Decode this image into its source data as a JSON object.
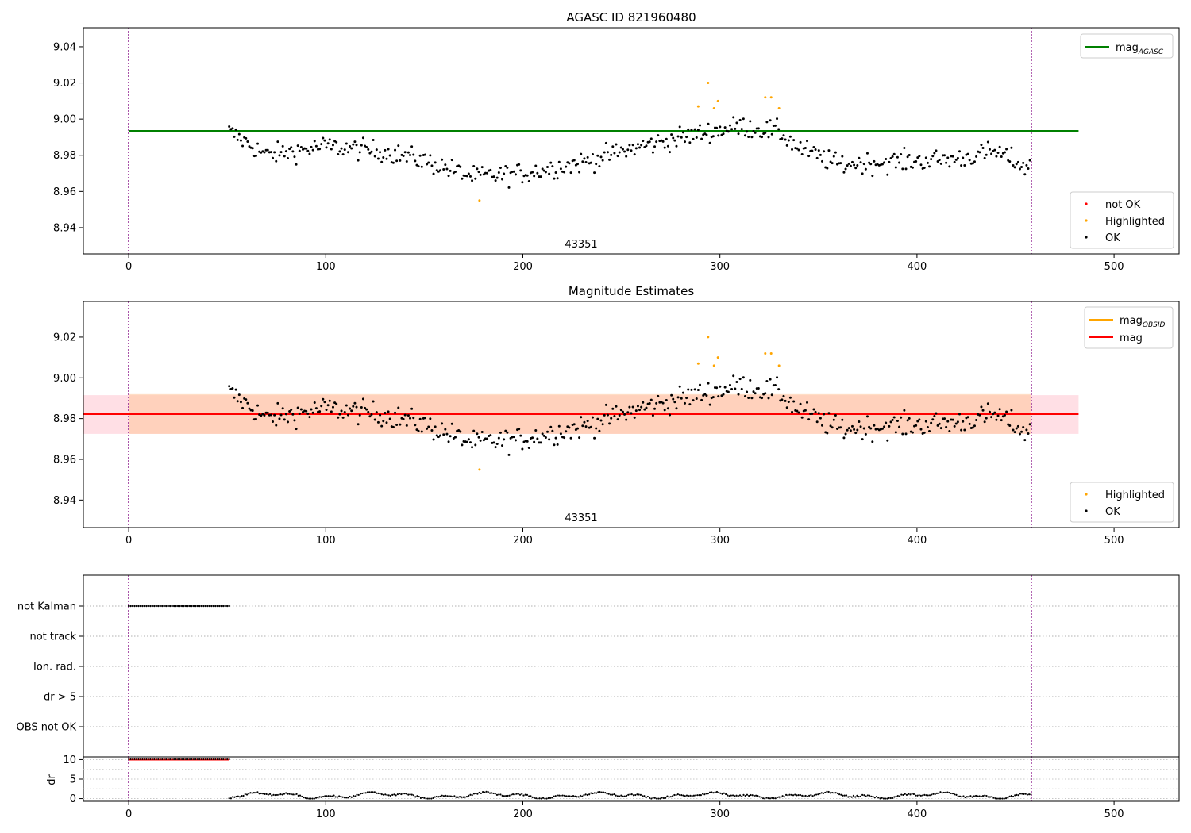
{
  "figure": {
    "colors": {
      "ok": "#000000",
      "highlighted": "#ffa500",
      "not_ok": "#ff0000",
      "mag_agasc": "#008000",
      "mag_obsid": "#ffa500",
      "mag": "#ff0000",
      "vline": "#800080",
      "band_mag": "#ffc0cb",
      "band_obsid": "#ffc8a0"
    }
  },
  "chart_data": [
    {
      "type": "scatter",
      "title": "AGASC ID 821960480",
      "xlim": [
        -23,
        533
      ],
      "ylim": [
        8.9255,
        9.0505
      ],
      "xticks": [
        0,
        100,
        200,
        300,
        400,
        500
      ],
      "yticks": [
        "8.94",
        "8.96",
        "8.98",
        "9.00",
        "9.02",
        "9.04"
      ],
      "obsid_label": "43351",
      "obsid_label_x": 229,
      "obsid_bounds": [
        0,
        458
      ],
      "legend_lines": {
        "position": "upper right",
        "entries": [
          {
            "label": "mag",
            "subscript": "AGASC",
            "color": "#008000"
          }
        ]
      },
      "legend_points": {
        "position": "lower right",
        "entries": [
          {
            "label": "not OK",
            "color": "#ff0000"
          },
          {
            "label": "Highlighted",
            "color": "#ffa500"
          },
          {
            "label": "OK",
            "color": "#000000"
          }
        ]
      },
      "lines": [
        {
          "name": "mag AGASC",
          "y": 8.9935,
          "x": [
            0,
            482
          ],
          "color": "#008000"
        }
      ]
    },
    {
      "type": "scatter",
      "title": "Magnitude Estimates",
      "xlim": [
        -23,
        533
      ],
      "ylim": [
        8.9265,
        9.0375
      ],
      "xticks": [
        0,
        100,
        200,
        300,
        400,
        500
      ],
      "yticks": [
        "8.94",
        "8.96",
        "8.98",
        "9.00",
        "9.02"
      ],
      "obsid_label": "43351",
      "obsid_label_x": 229,
      "obsid_bounds": [
        0,
        458
      ],
      "legend_lines": {
        "position": "upper right",
        "entries": [
          {
            "label": "mag",
            "subscript": "OBSID",
            "color": "#ffa500"
          },
          {
            "label": "mag",
            "subscript": "",
            "color": "#ff0000"
          }
        ]
      },
      "legend_points": {
        "position": "lower right",
        "entries": [
          {
            "label": "Highlighted",
            "color": "#ffa500"
          },
          {
            "label": "OK",
            "color": "#000000"
          }
        ]
      },
      "lines": [
        {
          "name": "mag OBSID",
          "y": 8.9824,
          "x": [
            0,
            458
          ],
          "color": "#ffa500"
        },
        {
          "name": "mag",
          "y": 8.9822,
          "x": [
            -23,
            482
          ],
          "color": "#ff0000"
        }
      ],
      "bands": [
        {
          "y0": 8.9725,
          "y1": 8.9915,
          "x": [
            -23,
            482
          ],
          "color": "#ffc0cb",
          "alpha": 0.5
        },
        {
          "y0": 8.9725,
          "y1": 8.992,
          "x": [
            0,
            458
          ],
          "color": "#ffc8a0",
          "alpha": 0.6
        }
      ]
    },
    {
      "type": "scatter",
      "xlim": [
        -23,
        533
      ],
      "xticks": [
        0,
        100,
        200,
        300,
        400,
        500
      ],
      "flag_labels": [
        "not Kalman",
        "not track",
        "Ion. rad.",
        "dr > 5",
        "OBS not OK"
      ],
      "flags": [
        {
          "label": "not Kalman",
          "x_range": [
            0,
            51
          ]
        }
      ],
      "obsid_bounds": [
        0,
        458
      ],
      "dr_ylabel": "dr",
      "dr_yticks": [
        "0",
        "5",
        "10"
      ],
      "dr_ylim": [
        -0.7,
        10.7
      ],
      "dr_saturated_range": [
        0,
        51
      ],
      "dr_saturated_value": 10,
      "dr_range": [
        51,
        458
      ],
      "dr_typical": [
        0,
        1.7
      ]
    }
  ]
}
